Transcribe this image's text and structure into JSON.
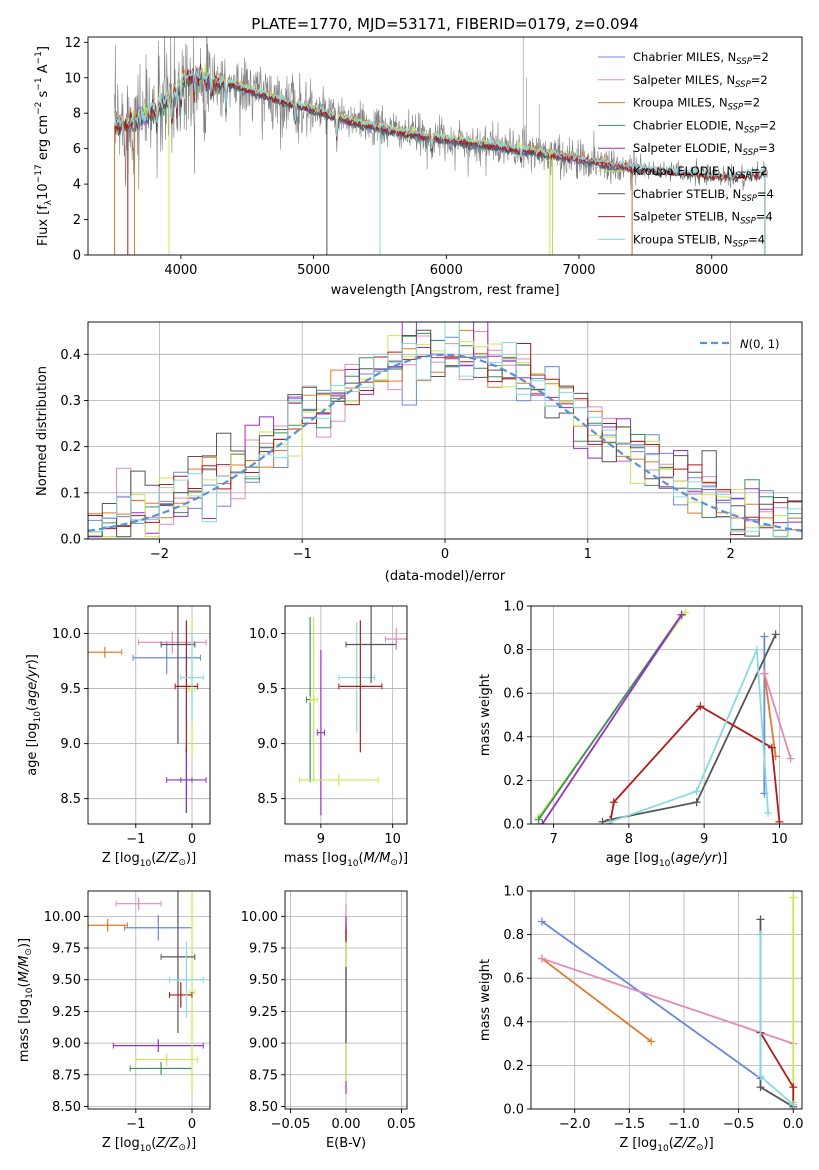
{
  "colors": {
    "chabrier_miles": "#6a89dd",
    "salpeter_miles": "#e488bb",
    "kroupa_miles": "#e07b2a",
    "chabrier_elodie": "#3f8f5f",
    "salpeter_elodie": "#9a2fc4",
    "kroupa_elodie": "#c8ea50",
    "chabrier_stelib": "#555555",
    "salpeter_stelib": "#b11a1a",
    "kroupa_stelib": "#86dbe2",
    "data_spectrum": "#808080",
    "normal_curve": "#5b8fd6"
  },
  "chart_data": [
    {
      "type": "line",
      "id": "spectrum",
      "title": "PLATE=1770, MJD=53171, FIBERID=0179, z=0.094",
      "xlabel": "wavelength [Angstrom, rest frame]",
      "ylabel": "Flux [f",
      "ylabel_sub": "λ",
      "ylabel_mid": "10",
      "ylabel_sup1": "−17",
      "ylabel_mid2": " erg cm",
      "ylabel_sup2": "−2",
      "ylabel_mid3": " s",
      "ylabel_sup3": "−1",
      "ylabel_mid4": " A",
      "ylabel_sup4": "−1",
      "ylabel_end": "]",
      "xlim": [
        3300,
        8680
      ],
      "ylim": [
        0,
        12.3
      ],
      "xticks": [
        4000,
        5000,
        6000,
        7000,
        8000
      ],
      "yticks": [
        0,
        2,
        4,
        6,
        8,
        10,
        12
      ],
      "legend_position": "upper right",
      "legend": [
        {
          "text": "Chabrier MILES, N",
          "sub": "SSP",
          "suffix": "=2",
          "color_key": "chabrier_miles"
        },
        {
          "text": "Salpeter MILES, N",
          "sub": "SSP",
          "suffix": "=2",
          "color_key": "salpeter_miles"
        },
        {
          "text": "Kroupa MILES, N",
          "sub": "SSP",
          "suffix": "=2",
          "color_key": "kroupa_miles"
        },
        {
          "text": "Chabrier ELODIE, N",
          "sub": "SSP",
          "suffix": "=2",
          "color_key": "chabrier_elodie"
        },
        {
          "text": "Salpeter ELODIE, N",
          "sub": "SSP",
          "suffix": "=3",
          "color_key": "salpeter_elodie"
        },
        {
          "text": "Kroupa ELODIE, N",
          "sub": "SSP",
          "suffix": "=2",
          "color_key": "kroupa_elodie"
        },
        {
          "text": "Chabrier STELIB, N",
          "sub": "SSP",
          "suffix": "=4",
          "color_key": "chabrier_stelib"
        },
        {
          "text": "Salpeter STELIB, N",
          "sub": "SSP",
          "suffix": "=4",
          "color_key": "salpeter_stelib"
        },
        {
          "text": "Kroupa STELIB, N",
          "sub": "SSP",
          "suffix": "=4",
          "color_key": "kroupa_stelib"
        }
      ],
      "continuum": {
        "x": [
          3500,
          3600,
          3700,
          3800,
          3900,
          4000,
          4100,
          4200,
          4400,
          4600,
          4800,
          5000,
          5300,
          5600,
          6000,
          6300,
          6600,
          7000,
          7400,
          7800,
          8200,
          8400
        ],
        "y": [
          7.3,
          7.4,
          7.8,
          8.2,
          8.7,
          9.8,
          10.2,
          9.9,
          9.6,
          9.1,
          8.6,
          8.2,
          7.5,
          7.0,
          6.5,
          6.2,
          5.9,
          5.4,
          4.9,
          4.6,
          4.4,
          4.6
        ]
      }
    },
    {
      "type": "histogram",
      "id": "residuals",
      "xlabel": "(data-model)/error",
      "ylabel": "Normed distribution",
      "xlim": [
        -2.5,
        2.5
      ],
      "ylim": [
        0,
        0.47
      ],
      "xticks": [
        -2,
        -1,
        0,
        1,
        2
      ],
      "yticks": [
        0.0,
        0.1,
        0.2,
        0.3,
        0.4
      ],
      "legend_position": "upper right",
      "legend": [
        {
          "label": "N(0,1)",
          "color_key": "normal_curve",
          "style": "dashed"
        }
      ],
      "bin_width": 0.1,
      "reference_curve": "standard normal, peak 0.399 at 0"
    },
    {
      "type": "errorbar",
      "id": "age_vs_Z",
      "xlabel": "Z [log10(Z/Z⊙)]",
      "ylabel": "age  [log10(age/yr)]",
      "xlim": [
        -1.85,
        0.32
      ],
      "ylim": [
        8.27,
        10.25
      ],
      "xticks": [
        -1,
        0
      ],
      "yticks": [
        8.5,
        9.0,
        9.5,
        10.0
      ],
      "points": [
        {
          "series": "chabrier_miles",
          "x": -0.45,
          "y": 9.78,
          "xerr": 0.6,
          "yerr": 0.15
        },
        {
          "series": "salpeter_miles",
          "x": -0.35,
          "y": 9.92,
          "xerr": 0.6,
          "yerr": 0.1
        },
        {
          "series": "kroupa_miles",
          "x": -1.55,
          "y": 9.83,
          "xerr": 0.3,
          "yerr": 0.05
        },
        {
          "series": "chabrier_elodie",
          "x": -0.1,
          "y": 8.67,
          "xerr": 0.1,
          "yerr": 0.3
        },
        {
          "series": "salpeter_elodie",
          "x": -0.1,
          "y": 8.67,
          "xerr": 0.35,
          "yerr": 0.3
        },
        {
          "series": "kroupa_elodie",
          "x": 0.0,
          "y": 9.5,
          "xerr": 0.05,
          "yerr": 0.65
        },
        {
          "series": "chabrier_stelib",
          "x": -0.25,
          "y": 9.9,
          "xerr": 0.3,
          "yerr": 0.9
        },
        {
          "series": "salpeter_stelib",
          "x": -0.1,
          "y": 9.52,
          "xerr": 0.2,
          "yerr": 0.6
        },
        {
          "series": "kroupa_stelib",
          "x": 0.0,
          "y": 9.6,
          "xerr": 0.2,
          "yerr": 0.4
        }
      ]
    },
    {
      "type": "errorbar",
      "id": "age_vs_mass",
      "xlabel": "mass [log10(M/M⊙)]",
      "ylabel": "",
      "xlim": [
        8.5,
        10.2
      ],
      "ylim": [
        8.27,
        10.25
      ],
      "xticks": [
        9,
        10
      ],
      "yticks": [
        8.5,
        9.0,
        9.5,
        10.0
      ],
      "points": [
        {
          "series": "chabrier_elodie",
          "x": 8.85,
          "y": 9.4,
          "xerr": 0.05,
          "yerr": 0.75
        },
        {
          "series": "kroupa_elodie",
          "x": 8.9,
          "y": 9.4,
          "xerr": 0.05,
          "yerr": 0.75
        },
        {
          "series": "salpeter_elodie",
          "x": 9.0,
          "y": 9.1,
          "xerr": 0.05,
          "yerr": 0.75
        },
        {
          "series": "kroupa_elodie",
          "x": 9.25,
          "y": 8.67,
          "xerr": 0.55,
          "yerr": 0.05
        },
        {
          "series": "kroupa_stelib",
          "x": 9.5,
          "y": 9.6,
          "xerr": 0.25,
          "yerr": 0.5
        },
        {
          "series": "salpeter_stelib",
          "x": 9.55,
          "y": 9.52,
          "xerr": 0.3,
          "yerr": 0.6
        },
        {
          "series": "chabrier_stelib",
          "x": 9.7,
          "y": 9.9,
          "xerr": 0.35,
          "yerr": 0.35
        },
        {
          "series": "salpeter_miles",
          "x": 10.05,
          "y": 9.95,
          "xerr": 0.15,
          "yerr": 0.1
        }
      ]
    },
    {
      "type": "line",
      "id": "mass_weight_vs_age",
      "xlabel": "age  [log10(age/yr)]",
      "ylabel": "mass weight",
      "xlim": [
        6.7,
        10.3
      ],
      "ylim": [
        0,
        1
      ],
      "xticks": [
        7,
        8,
        9,
        10
      ],
      "yticks": [
        0.0,
        0.2,
        0.4,
        0.6,
        0.8,
        1.0
      ],
      "series": [
        {
          "name": "",
          "color_key": "kroupa_elodie",
          "x": [
            6.8,
            8.75
          ],
          "y": [
            0.03,
            0.97
          ]
        },
        {
          "name": "",
          "color_key": "chabrier_elodie",
          "x": [
            6.8,
            8.7
          ],
          "y": [
            0.02,
            0.96
          ]
        },
        {
          "name": "",
          "color_key": "salpeter_elodie",
          "x": [
            6.85,
            8.7
          ],
          "y": [
            0.0,
            0.96
          ]
        },
        {
          "name": "",
          "color_key": "chabrier_miles",
          "x": [
            9.8,
            9.8
          ],
          "y": [
            0.86,
            0.14
          ]
        },
        {
          "name": "",
          "color_key": "kroupa_miles",
          "x": [
            9.8,
            9.95
          ],
          "y": [
            0.69,
            0.31
          ]
        },
        {
          "name": "",
          "color_key": "salpeter_miles",
          "x": [
            9.8,
            10.15
          ],
          "y": [
            0.69,
            0.3
          ]
        },
        {
          "name": "",
          "color_key": "chabrier_stelib",
          "x": [
            7.65,
            7.75,
            8.9,
            9.95
          ],
          "y": [
            0.01,
            0.02,
            0.1,
            0.87
          ]
        },
        {
          "name": "",
          "color_key": "salpeter_stelib",
          "x": [
            7.75,
            7.8,
            8.95,
            9.9,
            10.0
          ],
          "y": [
            0.0,
            0.1,
            0.54,
            0.35,
            0.01
          ]
        },
        {
          "name": "",
          "color_key": "kroupa_stelib",
          "x": [
            7.75,
            8.9,
            9.7,
            9.85
          ],
          "y": [
            0.01,
            0.15,
            0.8,
            0.05
          ]
        }
      ]
    },
    {
      "type": "errorbar",
      "id": "mass_vs_Z",
      "xlabel": "Z [log10(Z/Z⊙)]",
      "ylabel": "mass [log10(M/M⊙)]",
      "xlim": [
        -1.85,
        0.32
      ],
      "ylim": [
        8.48,
        10.2
      ],
      "xticks": [
        -1,
        0
      ],
      "yticks": [
        8.5,
        8.75,
        9.0,
        9.25,
        9.5,
        9.75,
        10.0
      ],
      "points": [
        {
          "series": "chabrier_miles",
          "x": -0.6,
          "y": 9.91,
          "xerr": 0.6,
          "yerr": 0.1
        },
        {
          "series": "salpeter_miles",
          "x": -0.95,
          "y": 10.1,
          "xerr": 0.4,
          "yerr": 0.05
        },
        {
          "series": "kroupa_miles",
          "x": -1.5,
          "y": 9.93,
          "xerr": 0.35,
          "yerr": 0.05
        },
        {
          "series": "salpeter_elodie",
          "x": -0.6,
          "y": 8.98,
          "xerr": 0.8,
          "yerr": 0.05
        },
        {
          "series": "kroupa_elodie",
          "x": -0.45,
          "y": 8.87,
          "xerr": 0.55,
          "yerr": 0.05
        },
        {
          "series": "chabrier_elodie",
          "x": -0.55,
          "y": 8.8,
          "xerr": 0.55,
          "yerr": 0.05
        },
        {
          "series": "kroupa_elodie",
          "x": 0.0,
          "y": 9.4,
          "xerr": 0.05,
          "yerr": 0.8
        },
        {
          "series": "chabrier_stelib",
          "x": -0.25,
          "y": 9.68,
          "xerr": 0.3,
          "yerr": 0.6
        },
        {
          "series": "salpeter_stelib",
          "x": -0.2,
          "y": 9.38,
          "xerr": 0.2,
          "yerr": 0.1
        },
        {
          "series": "kroupa_stelib",
          "x": -0.1,
          "y": 9.5,
          "xerr": 0.3,
          "yerr": 0.3
        }
      ]
    },
    {
      "type": "errorbar",
      "id": "mass_vs_ebv",
      "xlabel": "E(B-V)",
      "ylabel": "",
      "xlim": [
        -0.055,
        0.055
      ],
      "ylim": [
        8.48,
        10.2
      ],
      "xticks": [
        -0.05,
        0.0,
        0.05
      ],
      "yticks": [
        8.5,
        8.75,
        9.0,
        9.25,
        9.5,
        9.75,
        10.0
      ],
      "points": [
        {
          "series": "salpeter_miles",
          "x": 0.0,
          "y": 9.8,
          "xerr": 0.0,
          "yerr": 0.3
        },
        {
          "series": "chabrier_miles",
          "x": 0.0,
          "y": 9.85,
          "xerr": 0.0,
          "yerr": 0.1
        },
        {
          "series": "kroupa_miles",
          "x": 0.0,
          "y": 9.9,
          "xerr": 0.0,
          "yerr": 0.05
        },
        {
          "series": "salpeter_elodie",
          "x": 0.0,
          "y": 9.3,
          "xerr": 0.0,
          "yerr": 0.7
        },
        {
          "series": "kroupa_elodie",
          "x": 0.0,
          "y": 9.3,
          "xerr": 0.0,
          "yerr": 0.6
        },
        {
          "series": "chabrier_stelib",
          "x": 0.0,
          "y": 9.3,
          "xerr": 0.0,
          "yerr": 0.3
        },
        {
          "series": "salpeter_stelib",
          "x": 0.0,
          "y": 9.85,
          "xerr": 0.0,
          "yerr": 0.05
        }
      ]
    },
    {
      "type": "line",
      "id": "mass_weight_vs_Z",
      "xlabel": "Z [log10(Z/Z⊙)]",
      "ylabel": "mass weight",
      "xlim": [
        -2.4,
        0.08
      ],
      "ylim": [
        0,
        1
      ],
      "xticks": [
        -2.0,
        -1.5,
        -1.0,
        -0.5,
        0.0
      ],
      "yticks": [
        0.0,
        0.2,
        0.4,
        0.6,
        0.8,
        1.0
      ],
      "series": [
        {
          "name": "",
          "color_key": "chabrier_miles",
          "x": [
            -2.3,
            -0.3
          ],
          "y": [
            0.86,
            0.14
          ]
        },
        {
          "name": "",
          "color_key": "kroupa_miles",
          "x": [
            -2.3,
            -1.3
          ],
          "y": [
            0.69,
            0.31
          ]
        },
        {
          "name": "",
          "color_key": "salpeter_miles",
          "x": [
            -2.3,
            0.0
          ],
          "y": [
            0.69,
            0.3
          ]
        },
        {
          "name": "",
          "color_key": "kroupa_elodie",
          "x": [
            0.0,
            0.0
          ],
          "y": [
            0.97,
            0.03
          ]
        },
        {
          "name": "",
          "color_key": "chabrier_stelib",
          "x": [
            -0.3,
            -0.3,
            0.0
          ],
          "y": [
            0.87,
            0.1,
            0.01
          ]
        },
        {
          "name": "",
          "color_key": "salpeter_stelib",
          "x": [
            -0.3,
            0.0,
            0.0
          ],
          "y": [
            0.35,
            0.1,
            0.0
          ]
        },
        {
          "name": "",
          "color_key": "kroupa_stelib",
          "x": [
            -0.3,
            -0.3,
            0.0
          ],
          "y": [
            0.8,
            0.15,
            0.02
          ]
        }
      ]
    }
  ]
}
